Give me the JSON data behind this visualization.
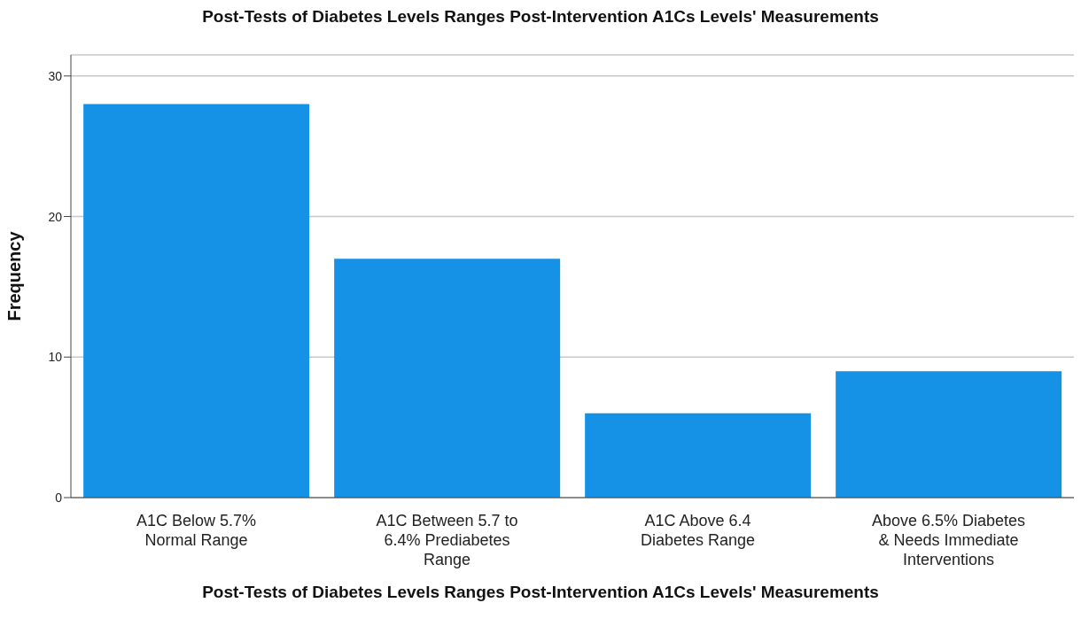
{
  "chart_data": {
    "type": "bar",
    "title": "Post-Tests of Diabetes Levels Ranges Post-Intervention A1Cs Levels' Measurements",
    "xlabel": "Post-Tests of Diabetes Levels Ranges Post-Intervention A1Cs Levels' Measurements",
    "ylabel": "Frequency",
    "categories": [
      "A1C Below 5.7% Normal Range",
      "A1C Between 5.7 to 6.4% Prediabetes Range",
      "A1C Above 6.4 Diabetes Range",
      "Above 6.5% Diabetes & Needs Immediate Interventions"
    ],
    "values": [
      28,
      17,
      6,
      9
    ],
    "color": "#1591e6",
    "ylim": [
      0,
      31.5
    ],
    "yticks": [
      0,
      10,
      20,
      30
    ],
    "grid": "y"
  }
}
